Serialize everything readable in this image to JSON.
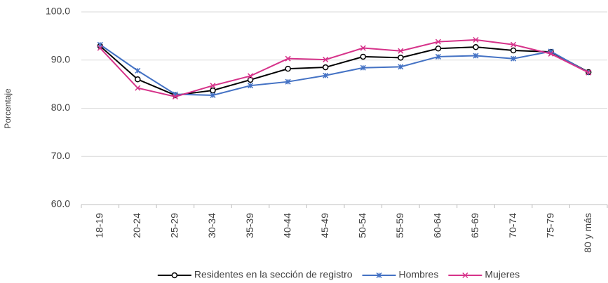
{
  "chart_data": {
    "type": "line",
    "y_label": "Porcentaje",
    "categories": [
      "18-19",
      "20-24",
      "25-29",
      "30-34",
      "35-39",
      "40-44",
      "45-49",
      "50-54",
      "55-59",
      "60-64",
      "65-69",
      "70-74",
      "75-79",
      "80 y más"
    ],
    "series": [
      {
        "name": "Residentes en la sección de registro",
        "color": "#000000",
        "marker": "circle",
        "values": [
          92.9,
          86.0,
          82.7,
          83.7,
          85.9,
          88.2,
          88.5,
          90.7,
          90.5,
          92.4,
          92.7,
          92.0,
          91.7,
          87.5
        ]
      },
      {
        "name": "Hombres",
        "color": "#4472c4",
        "marker": "star",
        "values": [
          93.2,
          87.8,
          82.9,
          82.7,
          84.7,
          85.5,
          86.8,
          88.4,
          88.6,
          90.7,
          90.9,
          90.3,
          91.8,
          87.4
        ]
      },
      {
        "name": "Mujeres",
        "color": "#d6338a",
        "marker": "x",
        "values": [
          92.5,
          84.2,
          82.4,
          84.7,
          86.7,
          90.3,
          90.1,
          92.5,
          91.9,
          93.8,
          94.2,
          93.2,
          91.3,
          87.4
        ]
      }
    ],
    "ylim": [
      60,
      100
    ],
    "yticks": [
      {
        "value": 60,
        "label": "60.0"
      },
      {
        "value": 70,
        "label": "70.0"
      },
      {
        "value": 80,
        "label": "80.0"
      },
      {
        "value": 90,
        "label": "90.0"
      },
      {
        "value": 100,
        "label": "100.0"
      }
    ],
    "grid": true,
    "legend": "bottom"
  }
}
